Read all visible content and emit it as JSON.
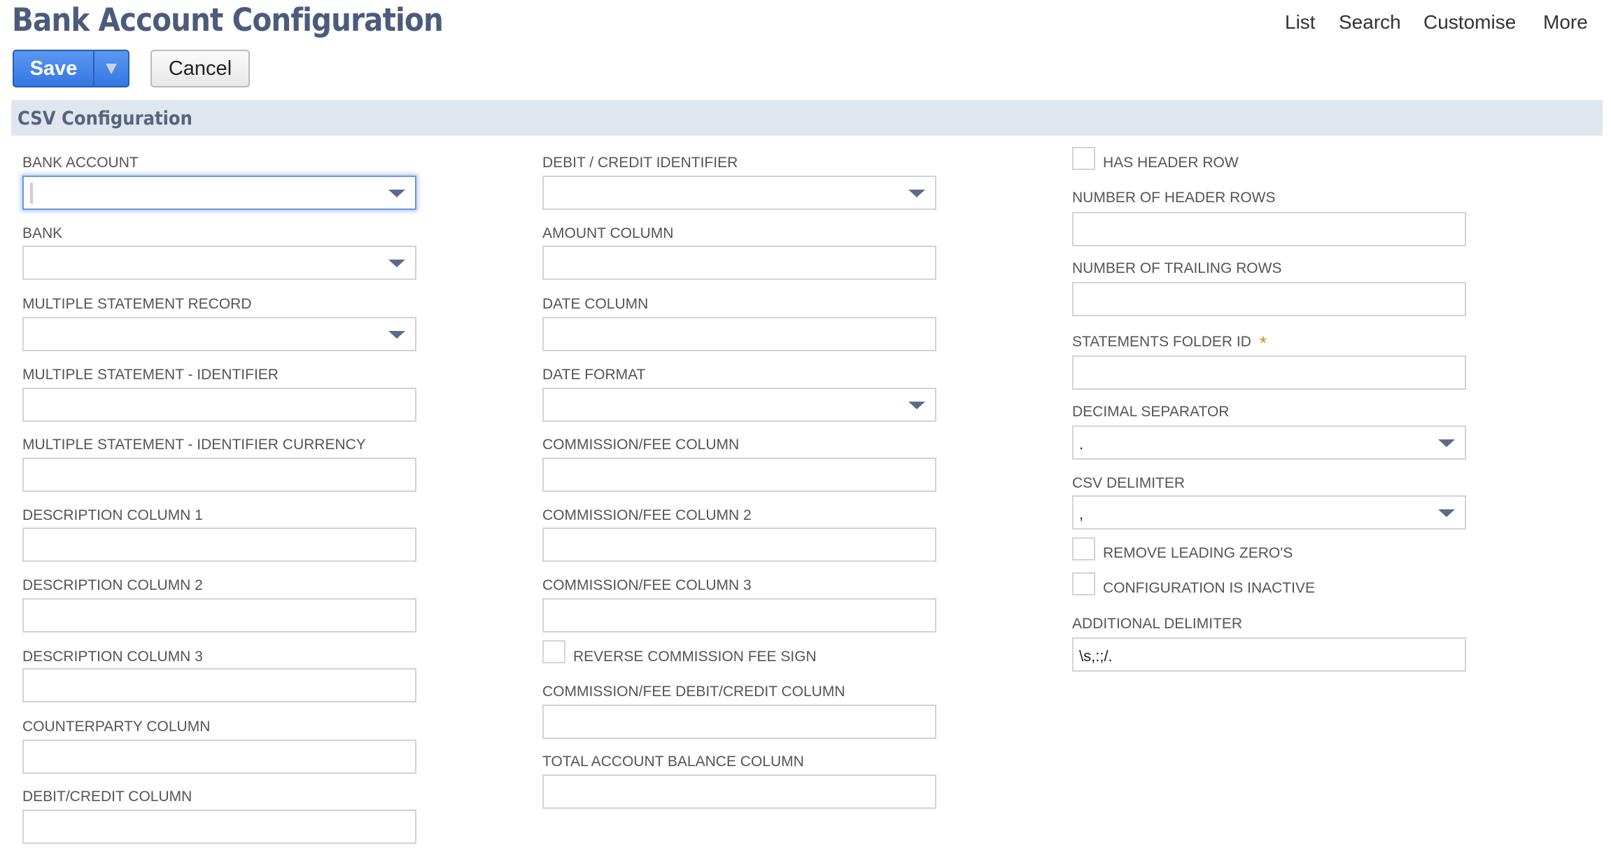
{
  "header": {
    "title": "Bank Account Configuration",
    "links": [
      "List",
      "Search",
      "Customise",
      "More"
    ]
  },
  "toolbar": {
    "save_label": "Save",
    "cancel_label": "Cancel"
  },
  "section": {
    "title": "CSV Configuration"
  },
  "colors": {
    "title": "#4d5b7b",
    "save_button": "#3676e0",
    "section_bar": "#e0e6ef",
    "required": "#c8901a"
  },
  "columns": [
    [
      {
        "label": "BANK ACCOUNT",
        "type": "select",
        "value": "",
        "focused": true
      },
      {
        "label": "BANK",
        "type": "select",
        "value": ""
      },
      {
        "label": "MULTIPLE STATEMENT RECORD",
        "type": "select",
        "value": ""
      },
      {
        "label": "MULTIPLE STATEMENT - IDENTIFIER",
        "type": "text",
        "value": ""
      },
      {
        "label": "MULTIPLE STATEMENT - IDENTIFIER CURRENCY",
        "type": "text",
        "value": ""
      },
      {
        "label": "DESCRIPTION COLUMN 1",
        "type": "text",
        "value": ""
      },
      {
        "label": "DESCRIPTION COLUMN 2",
        "type": "text",
        "value": ""
      },
      {
        "label": "DESCRIPTION COLUMN 3",
        "type": "text",
        "value": ""
      },
      {
        "label": "COUNTERPARTY COLUMN",
        "type": "text",
        "value": ""
      },
      {
        "label": "DEBIT/CREDIT COLUMN",
        "type": "text",
        "value": ""
      }
    ],
    [
      {
        "label": "DEBIT / CREDIT IDENTIFIER",
        "type": "select",
        "value": ""
      },
      {
        "label": "AMOUNT COLUMN",
        "type": "text",
        "value": ""
      },
      {
        "label": "DATE COLUMN",
        "type": "text",
        "value": ""
      },
      {
        "label": "DATE FORMAT",
        "type": "select",
        "value": ""
      },
      {
        "label": "COMMISSION/FEE COLUMN",
        "type": "text",
        "value": ""
      },
      {
        "label": "COMMISSION/FEE COLUMN 2",
        "type": "text",
        "value": ""
      },
      {
        "label": "COMMISSION/FEE COLUMN 3",
        "type": "text",
        "value": ""
      },
      {
        "label": "REVERSE COMMISSION FEE SIGN",
        "type": "checkbox",
        "checked": false
      },
      {
        "label": "COMMISSION/FEE DEBIT/CREDIT COLUMN",
        "type": "text",
        "value": ""
      },
      {
        "label": "TOTAL ACCOUNT BALANCE COLUMN",
        "type": "text",
        "value": ""
      }
    ],
    [
      {
        "label": "HAS HEADER ROW",
        "type": "checkbox",
        "checked": false
      },
      {
        "label": "NUMBER OF HEADER ROWS",
        "type": "text",
        "value": ""
      },
      {
        "label": "NUMBER OF TRAILING ROWS",
        "type": "text",
        "value": ""
      },
      {
        "label": "STATEMENTS FOLDER ID",
        "type": "text",
        "value": "",
        "required": true,
        "required_mark": "*"
      },
      {
        "label": "DECIMAL SEPARATOR",
        "type": "select",
        "value": "."
      },
      {
        "label": "CSV DELIMITER",
        "type": "select",
        "value": ","
      },
      {
        "label": "REMOVE LEADING ZERO'S",
        "type": "checkbox",
        "checked": false
      },
      {
        "label": "CONFIGURATION IS INACTIVE",
        "type": "checkbox",
        "checked": false
      },
      {
        "label": "ADDITIONAL DELIMITER",
        "type": "text",
        "value": "\\s,:;/."
      }
    ]
  ]
}
